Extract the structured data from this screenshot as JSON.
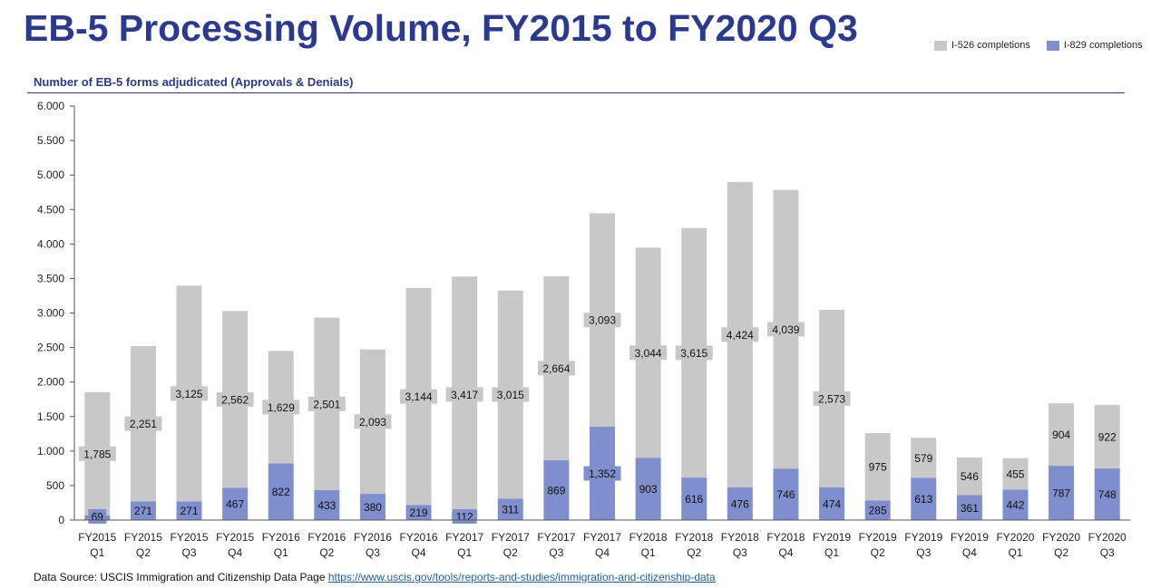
{
  "title": "EB-5 Processing Volume, FY2015 to FY2020 Q3",
  "subtitle": "Number of EB-5 forms adjudicated (Approvals & Denials)",
  "footer": {
    "source_label": "Data Source: USCIS Immigration and Citizenship Data Page",
    "link_text": "https://www.uscis.gov/tools/reports-and-studies/immigration-and-citizenship-data"
  },
  "colors": {
    "i526": "#c8c8c8",
    "i829": "#7f8fce",
    "title": "#2b3990"
  },
  "chart_data": {
    "type": "bar",
    "stacked": true,
    "title": "EB-5 Processing Volume, FY2015 to FY2020 Q3",
    "subtitle": "Number of EB-5 forms adjudicated (Approvals & Denials)",
    "xlabel": "",
    "ylabel": "",
    "ylim": [
      0,
      6000
    ],
    "yticks": [
      0,
      500,
      1000,
      1500,
      2000,
      2500,
      3000,
      3500,
      4000,
      4500,
      5000,
      5500,
      6000
    ],
    "ytick_labels": [
      "0",
      "500",
      "1.000",
      "1.500",
      "2.000",
      "2.500",
      "3.000",
      "3.500",
      "4.000",
      "4.500",
      "5.000",
      "5.500",
      "6.000"
    ],
    "legend_position": "top-right",
    "categories": [
      [
        "FY2015",
        "Q1"
      ],
      [
        "FY2015",
        "Q2"
      ],
      [
        "FY2015",
        "Q3"
      ],
      [
        "FY2015",
        "Q4"
      ],
      [
        "FY2016",
        "Q1"
      ],
      [
        "FY2016",
        "Q2"
      ],
      [
        "FY2016",
        "Q3"
      ],
      [
        "FY2016",
        "Q4"
      ],
      [
        "FY2017",
        "Q1"
      ],
      [
        "FY2017",
        "Q2"
      ],
      [
        "FY2017",
        "Q3"
      ],
      [
        "FY2017",
        "Q4"
      ],
      [
        "FY2018",
        "Q1"
      ],
      [
        "FY2018",
        "Q2"
      ],
      [
        "FY2018",
        "Q3"
      ],
      [
        "FY2018",
        "Q4"
      ],
      [
        "FY2019",
        "Q1"
      ],
      [
        "FY2019",
        "Q2"
      ],
      [
        "FY2019",
        "Q3"
      ],
      [
        "FY2019",
        "Q4"
      ],
      [
        "FY2020",
        "Q1"
      ],
      [
        "FY2020",
        "Q2"
      ],
      [
        "FY2020",
        "Q3"
      ]
    ],
    "series": [
      {
        "name": "I-829 completions",
        "values": [
          69,
          271,
          271,
          467,
          822,
          433,
          380,
          219,
          112,
          311,
          869,
          1352,
          903,
          616,
          476,
          746,
          474,
          285,
          613,
          361,
          442,
          787,
          748
        ],
        "labels": [
          "69",
          "271",
          "271",
          "467",
          "822",
          "433",
          "380",
          "219",
          "112",
          "311",
          "869",
          "1,352",
          "903",
          "616",
          "476",
          "746",
          "474",
          "285",
          "613",
          "361",
          "442",
          "787",
          "748"
        ]
      },
      {
        "name": "I-526 completions",
        "values": [
          1785,
          2251,
          3125,
          2562,
          1629,
          2501,
          2093,
          3144,
          3417,
          3015,
          2664,
          3093,
          3044,
          3615,
          4424,
          4039,
          2573,
          975,
          579,
          546,
          455,
          904,
          922
        ],
        "labels": [
          "1,785",
          "2,251",
          "3,125",
          "2,562",
          "1,629",
          "2,501",
          "2,093",
          "3,144",
          "3,417",
          "3,015",
          "2,664",
          "3,093",
          "3,044",
          "3,615",
          "4,424",
          "4,039",
          "2,573",
          "975",
          "579",
          "546",
          "455",
          "904",
          "922"
        ]
      }
    ]
  }
}
